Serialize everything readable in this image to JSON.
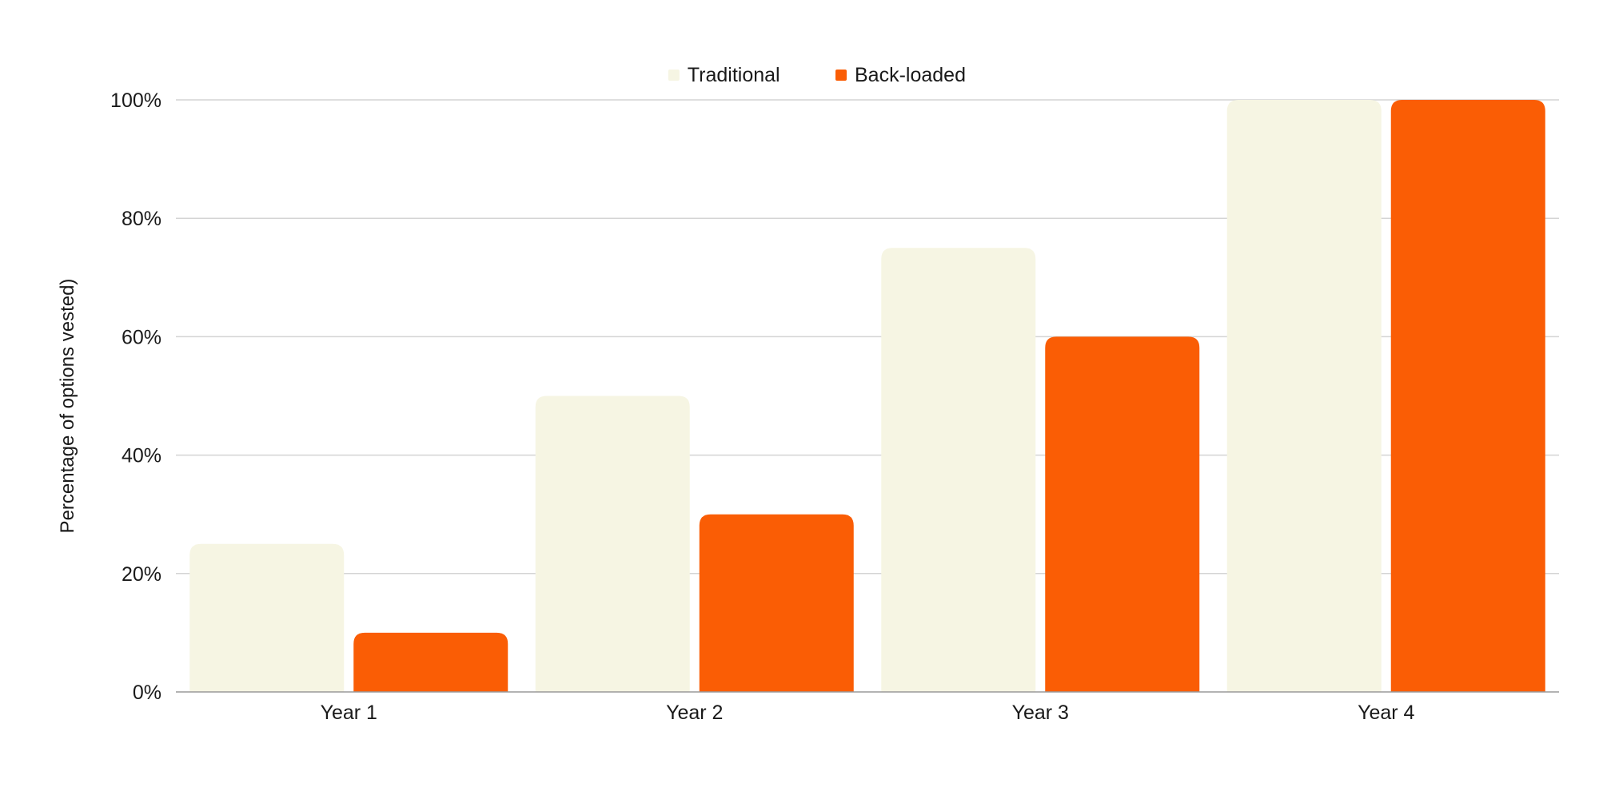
{
  "chart_data": {
    "type": "bar",
    "title": "",
    "xlabel": "",
    "ylabel": "Percentage of options vested)",
    "categories": [
      "Year 1",
      "Year 2",
      "Year 3",
      "Year 4"
    ],
    "series": [
      {
        "name": "Traditional",
        "values": [
          25,
          50,
          75,
          100
        ],
        "color": "#f6f5e3"
      },
      {
        "name": "Back-loaded",
        "values": [
          10,
          30,
          60,
          100
        ],
        "color": "#fa5d05"
      }
    ],
    "ylim": [
      0,
      100
    ],
    "yticks": [
      0,
      20,
      40,
      60,
      80,
      100
    ],
    "ytick_labels": [
      "0%",
      "20%",
      "40%",
      "60%",
      "80%",
      "100%"
    ],
    "grid": true,
    "legend_position": "top-center",
    "colors": {
      "gridline": "#d4d4d4",
      "axis": "#9a9a9a",
      "text": "#1a1a1a"
    }
  }
}
